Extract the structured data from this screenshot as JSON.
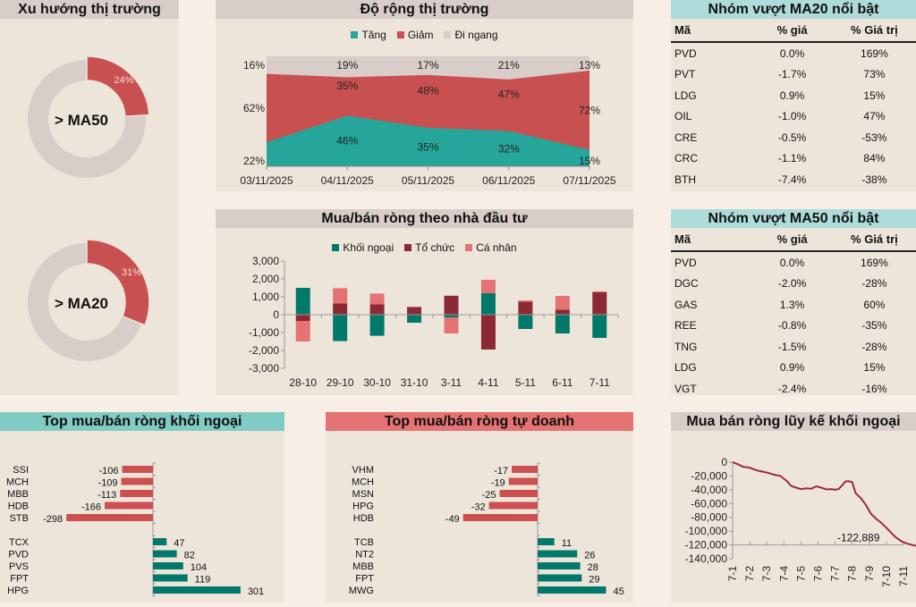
{
  "colors": {
    "teal": "#26a69a",
    "red": "#c85050",
    "grey": "#d8cdc8",
    "kn": "#00796b",
    "tc": "#8b2a35",
    "cn": "#e57373",
    "line": "#9c2b35",
    "neg_bar": "#cd5050",
    "pos_bar": "#00796b"
  },
  "trend": {
    "title": "Xu hướng thị trường",
    "donuts": [
      {
        "label": "> MA50",
        "value_label": "24%",
        "value": 0.24
      },
      {
        "label": "> MA20",
        "value_label": "31%",
        "value": 0.31
      }
    ]
  },
  "ma20": {
    "title": "Nhóm vượt MA20 nổi bật",
    "headers": [
      "Mã",
      "% giá",
      "% Giá trị"
    ],
    "rows": [
      [
        "PVD",
        "0.0%",
        "169%"
      ],
      [
        "PVT",
        "-1.7%",
        "73%"
      ],
      [
        "LDG",
        "0.9%",
        "15%"
      ],
      [
        "OIL",
        "-1.0%",
        "47%"
      ],
      [
        "CRE",
        "-0.5%",
        "-53%"
      ],
      [
        "CRC",
        "-1.1%",
        "84%"
      ],
      [
        "BTH",
        "-7.4%",
        "-38%"
      ]
    ]
  },
  "ma50": {
    "title": "Nhóm vượt MA50 nổi bật",
    "headers": [
      "Mã",
      "% giá",
      "% Giá trị"
    ],
    "rows": [
      [
        "PVD",
        "0.0%",
        "169%"
      ],
      [
        "DGC",
        "-2.0%",
        "-28%"
      ],
      [
        "GAS",
        "1.3%",
        "60%"
      ],
      [
        "REE",
        "-0.8%",
        "-35%"
      ],
      [
        "TNG",
        "-1.5%",
        "-28%"
      ],
      [
        "LDG",
        "0.9%",
        "15%"
      ],
      [
        "VGT",
        "-2.4%",
        "-16%"
      ]
    ]
  },
  "chart_data": [
    {
      "id": "breadth",
      "type": "area",
      "title": "Độ rộng thị trường",
      "categories": [
        "03/11/2025",
        "04/11/2025",
        "05/11/2025",
        "06/11/2025",
        "07/11/2025"
      ],
      "stacked": true,
      "percent": true,
      "legend": "top",
      "series": [
        {
          "name": "Tăng",
          "values": [
            22,
            46,
            35,
            32,
            15
          ],
          "labels": [
            "22%",
            "46%",
            "35%",
            "32%",
            "15%"
          ]
        },
        {
          "name": "Giảm",
          "values": [
            62,
            35,
            48,
            47,
            72
          ],
          "labels": [
            "62%",
            "35%",
            "48%",
            "47%",
            "72%"
          ]
        },
        {
          "name": "Đi ngang",
          "values": [
            16,
            19,
            17,
            21,
            13
          ],
          "labels": [
            "16%",
            "19%",
            "17%",
            "21%",
            "13%"
          ]
        }
      ]
    },
    {
      "id": "investor",
      "type": "bar",
      "title": "Mua/bán ròng theo nhà đầu tư",
      "stacked": true,
      "legend": "top",
      "categories": [
        "28-10",
        "29-10",
        "30-10",
        "31-10",
        "3-11",
        "4-11",
        "5-11",
        "6-11",
        "7-11"
      ],
      "ylim": [
        -3000,
        3000
      ],
      "yticks": [
        3000,
        2000,
        1000,
        0,
        -1000,
        -2000,
        -3000
      ],
      "ytick_labels": [
        "3,000",
        "2,000",
        "1,000",
        "0",
        "-1,000",
        "-2,000",
        "-3,000"
      ],
      "series": [
        {
          "name": "Khối ngoại",
          "values": [
            1500,
            -1480,
            -1180,
            -450,
            -150,
            1200,
            -800,
            -1050,
            -1300
          ]
        },
        {
          "name": "Tổ chức",
          "values": [
            -350,
            630,
            580,
            420,
            1060,
            -1950,
            720,
            280,
            1250
          ]
        },
        {
          "name": "Cá nhân",
          "values": [
            -1150,
            850,
            600,
            30,
            -900,
            750,
            80,
            770,
            50
          ]
        }
      ]
    },
    {
      "id": "top_foreign",
      "type": "bar",
      "orientation": "horizontal",
      "title": "Top mua/bán ròng khối ngoại",
      "sell": {
        "labels": [
          "SSI",
          "MCH",
          "MBB",
          "HDB",
          "STB"
        ],
        "values": [
          -106,
          -109,
          -113,
          -166,
          -298
        ]
      },
      "buy": {
        "labels": [
          "TCX",
          "PVD",
          "PVS",
          "FPT",
          "HPG"
        ],
        "values": [
          47,
          82,
          104,
          119,
          301
        ]
      }
    },
    {
      "id": "top_prop",
      "type": "bar",
      "orientation": "horizontal",
      "title": "Top mua/bán ròng tự doanh",
      "sell": {
        "labels": [
          "VHM",
          "MCH",
          "MSN",
          "HPG",
          "HDB"
        ],
        "values": [
          -17,
          -19,
          -25,
          -32,
          -49
        ]
      },
      "buy": {
        "labels": [
          "TCB",
          "NT2",
          "MBB",
          "FPT",
          "MWG"
        ],
        "values": [
          11,
          26,
          28,
          29,
          45
        ]
      }
    },
    {
      "id": "cumulative",
      "type": "line",
      "title": "Mua bán ròng lũy kế khối ngoại",
      "xticks": [
        "7-1",
        "7-2",
        "7-3",
        "7-4",
        "7-5",
        "7-6",
        "7-7",
        "7-8",
        "7-9",
        "7-10",
        "7-11"
      ],
      "ylim": [
        -140000,
        0
      ],
      "yticks": [
        0,
        -20000,
        -40000,
        -60000,
        -80000,
        -100000,
        -120000,
        -140000
      ],
      "ytick_labels": [
        "0",
        "-20,000",
        "-40,000",
        "-60,000",
        "-80,000",
        "-100,000",
        "-120,000",
        "-140,000"
      ],
      "x": [
        0,
        0.3,
        0.6,
        1.0,
        1.3,
        1.6,
        2.0,
        2.4,
        2.8,
        3.0,
        3.2,
        3.4,
        3.6,
        4.0,
        4.3,
        4.6,
        4.9,
        5.2,
        5.5,
        5.8,
        6.0,
        6.2,
        6.4,
        6.6,
        6.8,
        7.0,
        7.2,
        7.5,
        7.8,
        8.1,
        8.4,
        8.7,
        9.0,
        9.3,
        9.6,
        9.9,
        10.2,
        10.5,
        10.8,
        11.0
      ],
      "y": [
        0,
        -3000,
        -6500,
        -8000,
        -11000,
        -13000,
        -15000,
        -18000,
        -20000,
        -24000,
        -28000,
        -34000,
        -36000,
        -39000,
        -38000,
        -38500,
        -35000,
        -37000,
        -39500,
        -39000,
        -40000,
        -39000,
        -34000,
        -28000,
        -27500,
        -29000,
        -45000,
        -52000,
        -62000,
        -75000,
        -82000,
        -88000,
        -95000,
        -103000,
        -110000,
        -115000,
        -118000,
        -120000,
        -121500,
        -122889
      ],
      "annotation": "-122,889"
    }
  ],
  "breadth": {
    "title": "Độ rộng thị trường",
    "legend": [
      "Tăng",
      "Giảm",
      "Đi ngang"
    ]
  },
  "investor": {
    "title": "Mua/bán ròng theo nhà đầu tư",
    "legend": [
      "Khối ngoại",
      "Tổ chức",
      "Cá nhân"
    ]
  },
  "top_foreign": {
    "title": "Top mua/bán ròng khối ngoại"
  },
  "top_prop": {
    "title": "Top mua/bán ròng tự doanh"
  },
  "cumulative": {
    "title": "Mua bán ròng lũy kế khối ngoại"
  }
}
